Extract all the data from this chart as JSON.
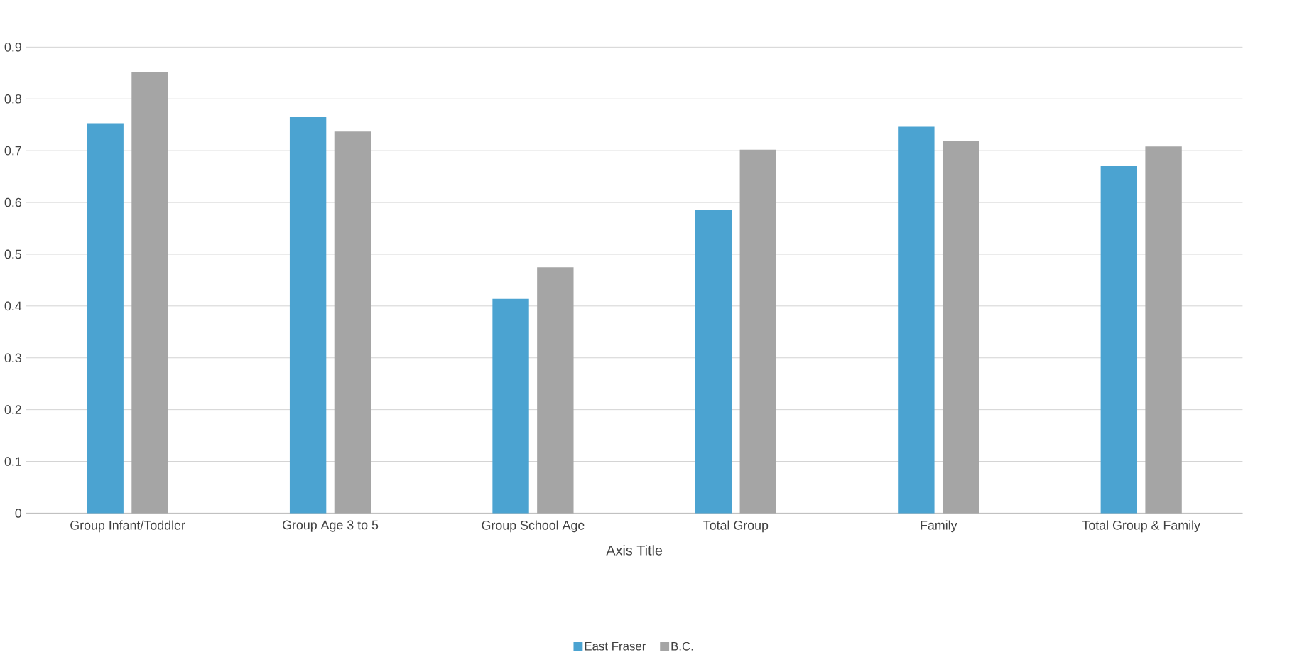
{
  "chart_data": {
    "type": "bar",
    "xlabel": "Axis Title",
    "categories": [
      "Group Infant/Toddler",
      "Group Age 3 to 5",
      "Group School Age",
      "Total Group",
      "Family",
      "Total Group & Family"
    ],
    "series": [
      {
        "name": "East Fraser",
        "color": "#4ba3d1",
        "values": [
          0.753,
          0.765,
          0.414,
          0.586,
          0.746,
          0.67
        ]
      },
      {
        "name": "B.C.",
        "color": "#a5a5a5",
        "values": [
          0.851,
          0.737,
          0.475,
          0.702,
          0.719,
          0.708
        ]
      }
    ],
    "ylim": [
      0,
      0.9
    ],
    "yticks": [
      0,
      0.1,
      0.2,
      0.3,
      0.4,
      0.5,
      0.6,
      0.7,
      0.8,
      0.9
    ],
    "grid": "y",
    "legend": "bottom"
  }
}
